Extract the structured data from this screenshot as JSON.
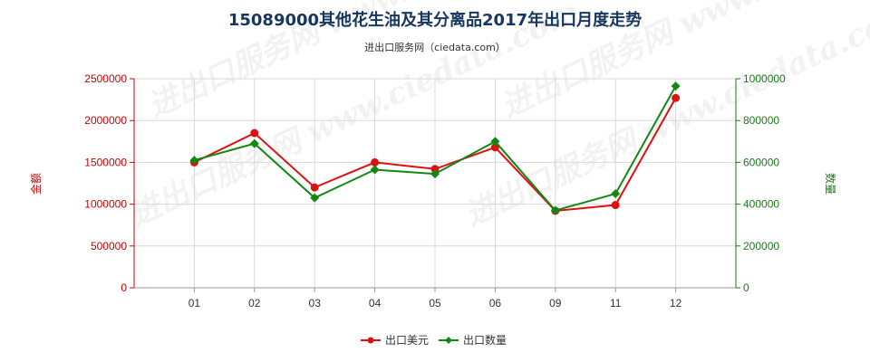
{
  "chart_data": {
    "type": "line",
    "title": "15089000其他花生油及其分离品2017年出口月度走势",
    "subtitle": "进出口服务网（ciedata.com）",
    "categories": [
      "01",
      "02",
      "03",
      "04",
      "05",
      "06",
      "09",
      "11",
      "12"
    ],
    "series": [
      {
        "name": "出口美元",
        "axis": "left",
        "color": "#dd1111",
        "marker": "circle",
        "values": [
          1500000,
          1850000,
          1200000,
          1500000,
          1420000,
          1680000,
          920000,
          990000,
          2270000
        ]
      },
      {
        "name": "出口数量",
        "axis": "right",
        "color": "#118811",
        "marker": "diamond",
        "values": [
          610000,
          690000,
          430000,
          565000,
          545000,
          700000,
          370000,
          450000,
          965000
        ]
      }
    ],
    "y_left": {
      "label": "金额",
      "range": [
        0,
        2500000
      ],
      "ticks": [
        "0",
        "500000",
        "1000000",
        "1500000",
        "2000000",
        "2500000"
      ]
    },
    "y_right": {
      "label": "数量",
      "range": [
        0,
        1000000
      ],
      "ticks": [
        "0",
        "200000",
        "400000",
        "600000",
        "800000",
        "1000000"
      ]
    },
    "grid": true,
    "legend": "bottom",
    "watermark": "进出口服务网 www.ciedata.com"
  }
}
